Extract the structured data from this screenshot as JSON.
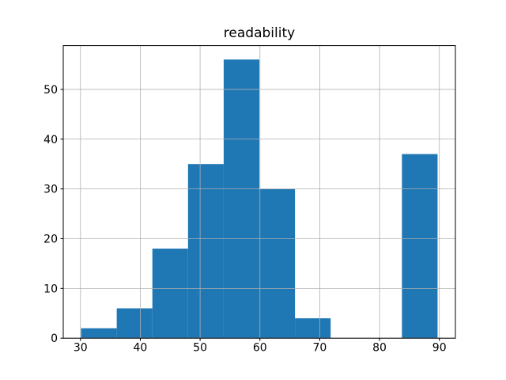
{
  "figure": {
    "background": "#ffffff"
  },
  "chart_data": {
    "type": "bar",
    "subtype": "histogram",
    "title": "readability",
    "xlabel": "",
    "ylabel": "",
    "bin_edges": [
      30.1,
      36.06,
      42.02,
      47.98,
      53.94,
      59.9,
      65.86,
      71.82,
      77.78,
      83.74,
      89.7
    ],
    "counts": [
      2,
      6,
      18,
      35,
      56,
      30,
      4,
      0,
      0,
      37
    ],
    "xticks": [
      30,
      40,
      50,
      60,
      70,
      80,
      90
    ],
    "yticks": [
      0,
      10,
      20,
      30,
      40,
      50
    ],
    "xlim": [
      27.12,
      92.68
    ],
    "ylim": [
      0,
      58.8
    ],
    "grid": true,
    "grid_over_bars": true,
    "legend": false,
    "bar_color": "#1f77b4",
    "grid_color": "#b0b0b0",
    "spine_color": "#000000",
    "text_color": "#000000"
  }
}
